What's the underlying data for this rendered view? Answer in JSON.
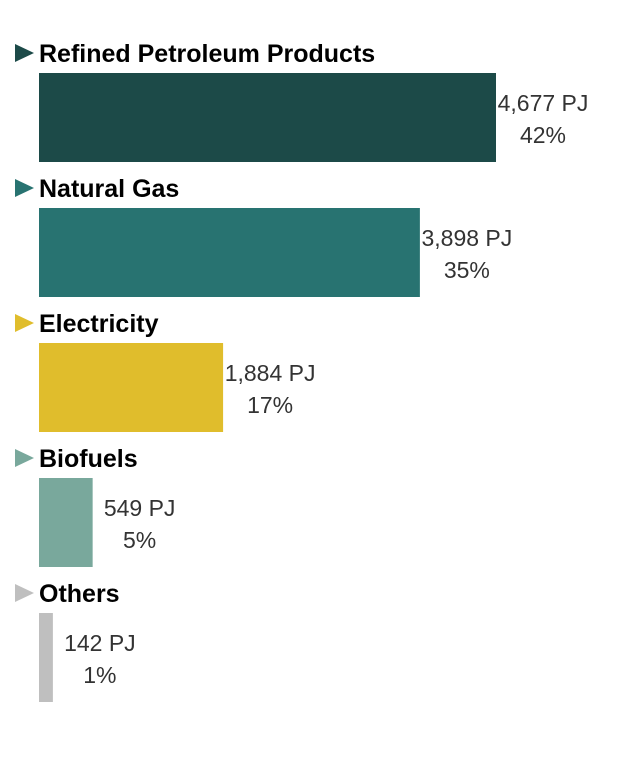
{
  "chart_data": {
    "type": "bar",
    "orientation": "horizontal",
    "title": "",
    "xlabel": "",
    "ylabel": "",
    "grid": false,
    "legend": "none",
    "xlim": [
      0,
      4677
    ],
    "categories": [
      "Refined Petroleum Products",
      "Natural Gas",
      "Electricity",
      "Biofuels",
      "Others"
    ],
    "values": [
      4677,
      3898,
      1884,
      549,
      142
    ],
    "value_labels": [
      "4,677 PJ",
      "3,898 PJ",
      "1,884 PJ",
      "549 PJ",
      "142 PJ"
    ],
    "percent_labels": [
      "42%",
      "35%",
      "17%",
      "5%",
      "1%"
    ],
    "colors": [
      "#1c4a48",
      "#287371",
      "#e0bd2c",
      "#79a89c",
      "#bfbfbf"
    ]
  }
}
